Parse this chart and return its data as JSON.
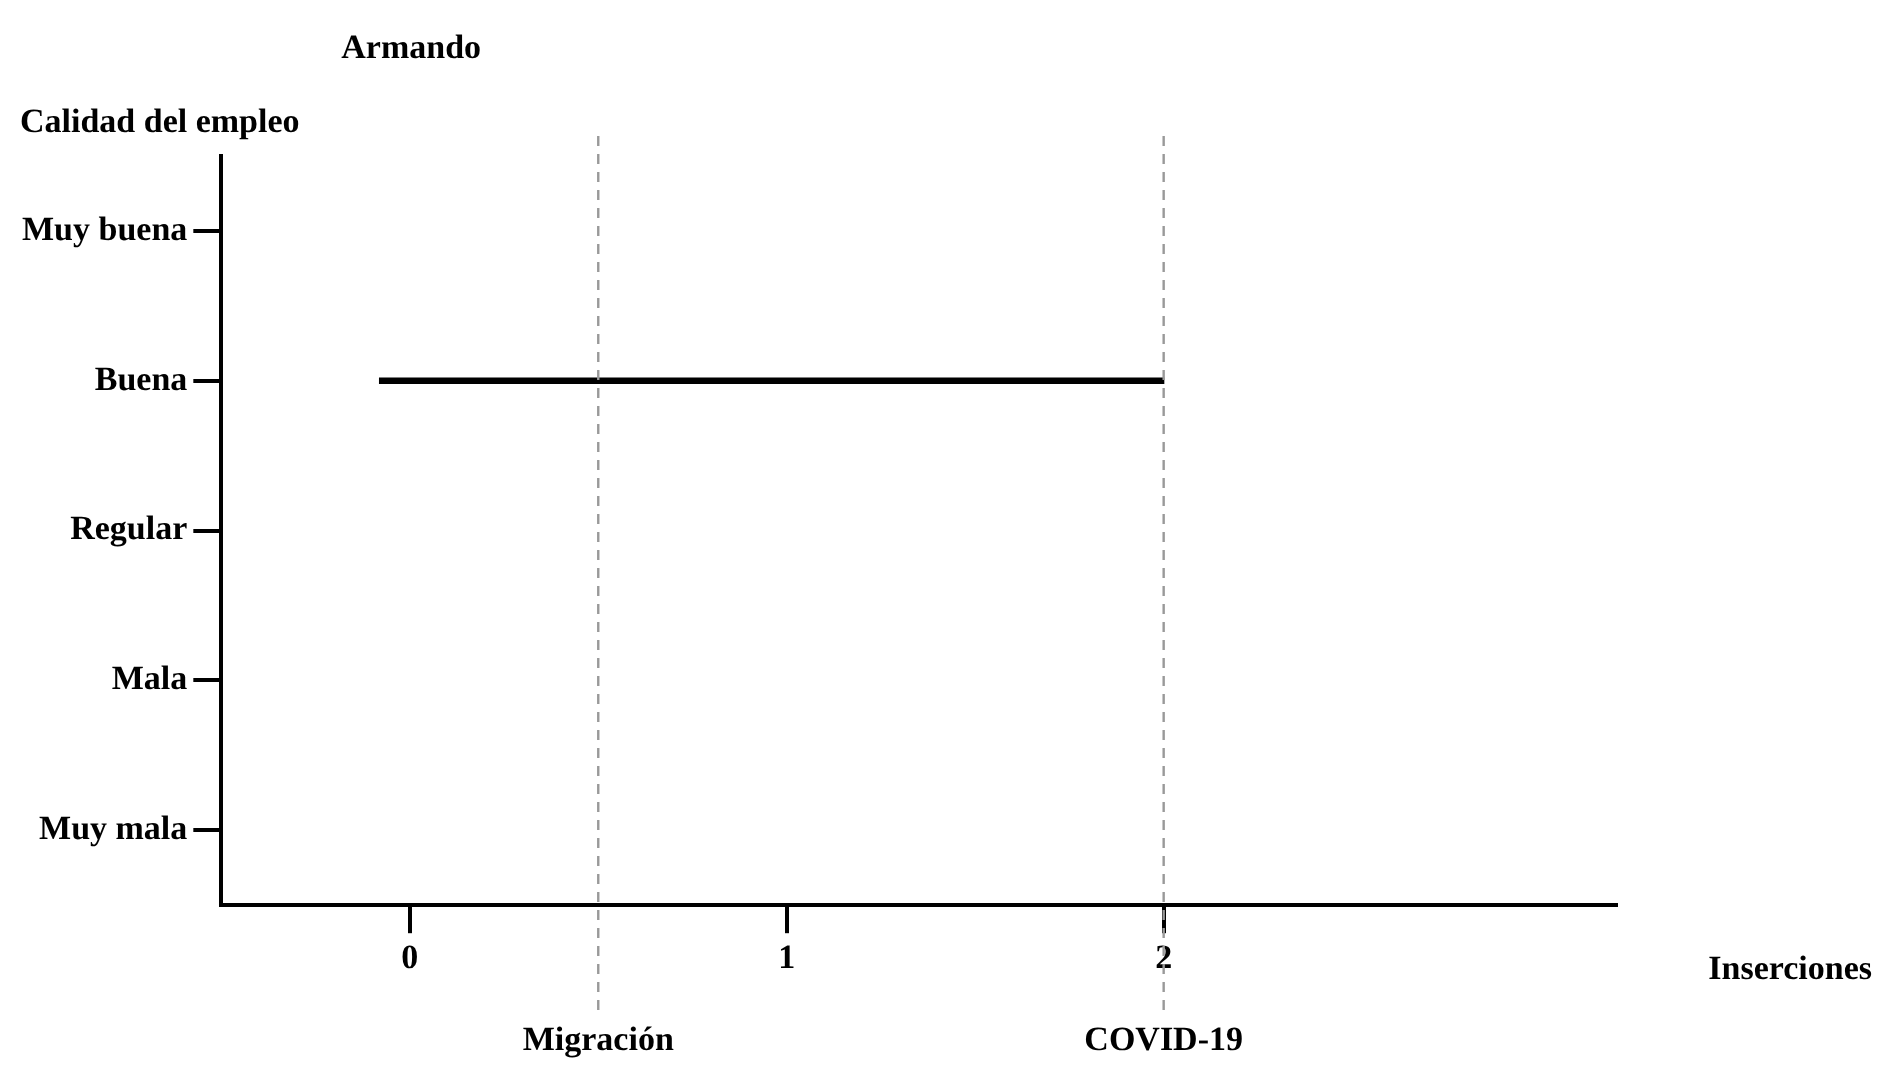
{
  "chart_data": {
    "type": "bar",
    "orientation": "horizontal",
    "title": "Armando",
    "xlabel": "Inserciones",
    "ylabel": "Calidad del empleo",
    "categories": [
      "Muy buena",
      "Buena",
      "Regular",
      "Mala",
      "Muy mala"
    ],
    "xlim": [
      -0.5,
      3.2
    ],
    "xticks": [
      0,
      1,
      2
    ],
    "series": [
      {
        "color": "#000000",
        "base": [
          null,
          -0.08,
          null,
          null,
          null
        ],
        "values": [
          null,
          2.08,
          null,
          null,
          null
        ]
      }
    ],
    "ref_lines": [
      {
        "axis": "x",
        "value": 0.5,
        "label": "Migración",
        "color": "#999999",
        "line_style": "dashed"
      },
      {
        "axis": "x",
        "value": 2,
        "label": "COVID-19",
        "color": "#999999",
        "line_style": "dashed"
      }
    ],
    "grid": false,
    "legend": false
  }
}
